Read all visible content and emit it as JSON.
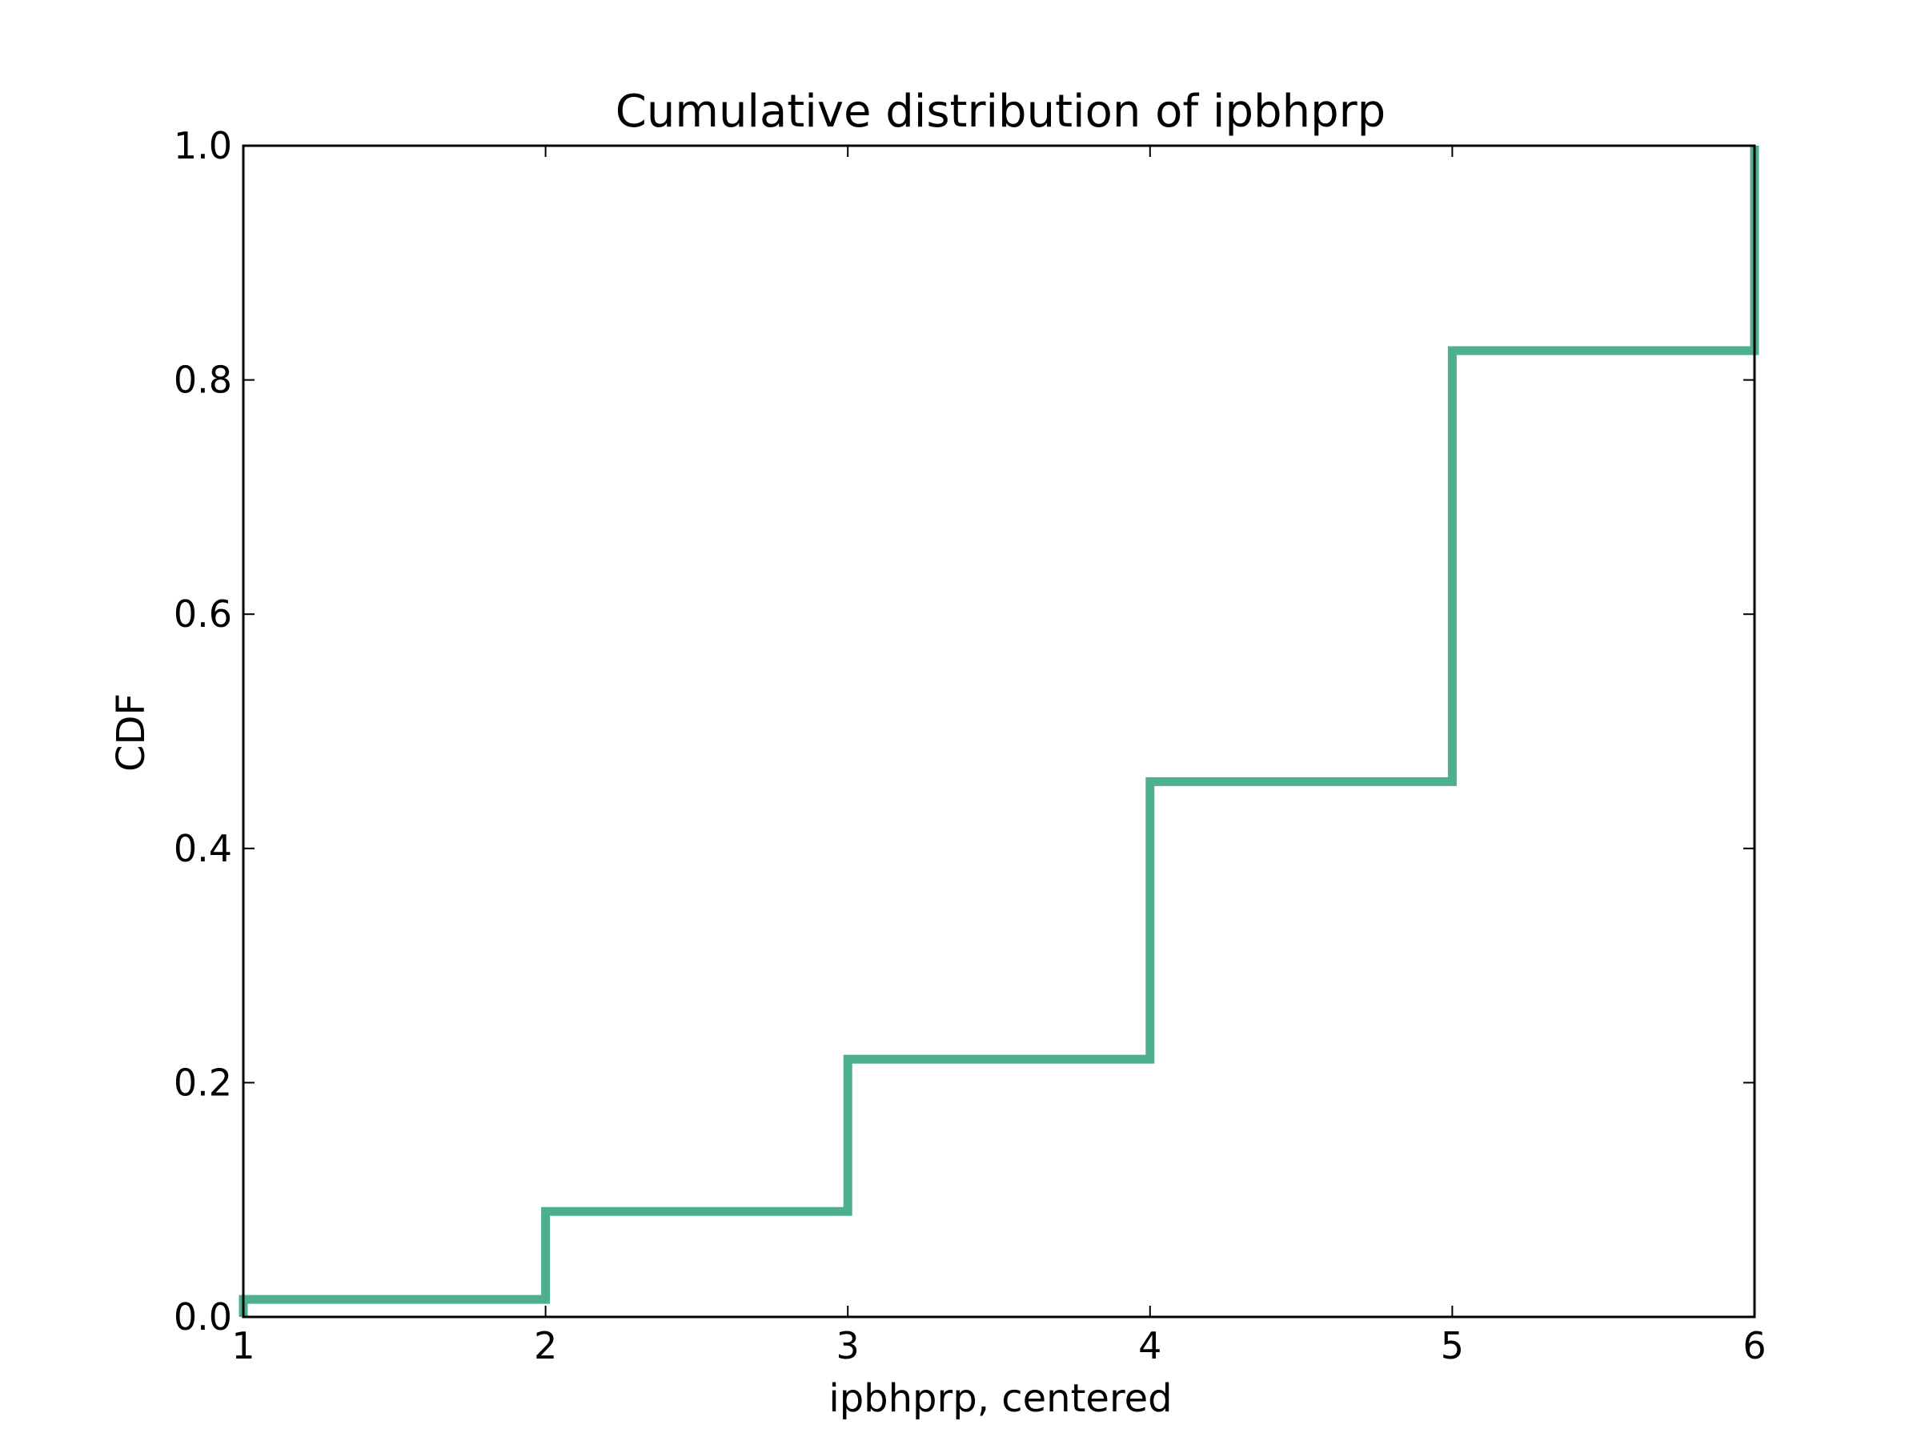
{
  "chart_data": {
    "type": "line",
    "title": "Cumulative distribution of ipbhprp",
    "xlabel": "ipbhprp, centered",
    "ylabel": "CDF",
    "xlim": [
      1,
      6
    ],
    "ylim": [
      0.0,
      1.0
    ],
    "x_ticks": [
      "1",
      "2",
      "3",
      "4",
      "5",
      "6"
    ],
    "y_ticks": [
      "0.0",
      "0.2",
      "0.4",
      "0.6",
      "0.8",
      "1.0"
    ],
    "grid": false,
    "legend": "none",
    "step": true,
    "series": [
      {
        "color": "#4daf8e",
        "x": [
          1,
          2,
          3,
          4,
          5,
          6
        ],
        "y": [
          0.015,
          0.09,
          0.22,
          0.457,
          0.825,
          1.0
        ]
      }
    ]
  }
}
